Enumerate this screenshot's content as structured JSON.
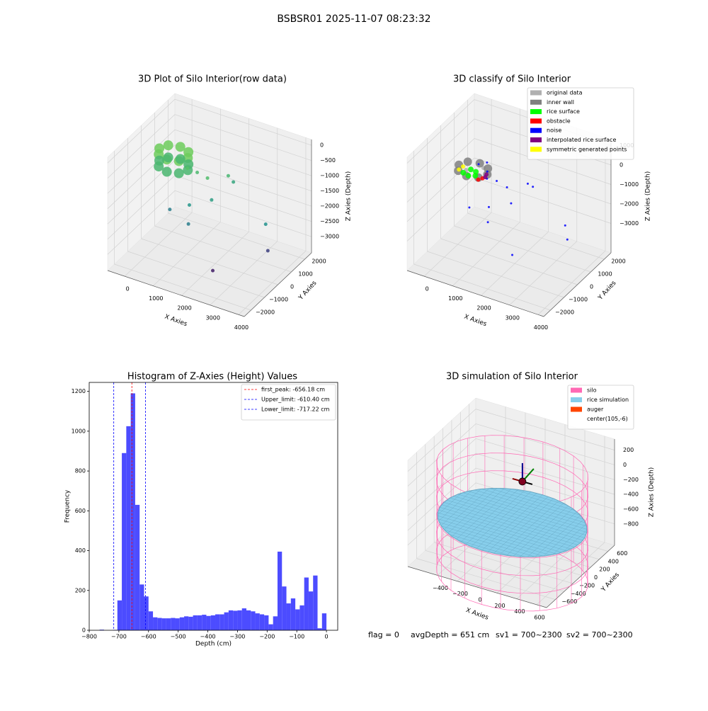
{
  "title": "BSBSR01 2025-11-07 08:23:32",
  "footer": [
    "flag = 0",
    "avgDepth = 651 cm",
    "sv1 = 700~2300",
    "sv2 = 700~2300"
  ],
  "chart_data": [
    {
      "type": "scatter3d",
      "title": "3D Plot of Silo Interior(row data)",
      "xlabel": "X Axies",
      "ylabel": "Y Axies",
      "zlabel": "Z Axies (Depth)",
      "colormap": "viridis",
      "xlim": [
        -600,
        4200
      ],
      "ylim": [
        -2500,
        2500
      ],
      "zlim": [
        -3530,
        190
      ],
      "xticks": [
        0,
        1000,
        2000,
        3000,
        4000
      ],
      "yticks": [
        {
          "value": -2000,
          "label": "−2000"
        },
        {
          "value": -1000,
          "label": "−1000"
        },
        0,
        1000,
        2000
      ],
      "zticks": [
        0,
        {
          "value": -500,
          "label": "−500"
        },
        {
          "value": -1000,
          "label": "−1000"
        },
        {
          "value": -1500,
          "label": "−1500"
        },
        {
          "value": -2000,
          "label": "−2000"
        },
        {
          "value": -2500,
          "label": "−2500"
        },
        {
          "value": -3000,
          "label": "−3000"
        }
      ],
      "series": [
        {
          "x": [
            800,
            654,
            300,
            -54,
            -200,
            -54,
            300,
            654,
            800,
            654,
            300,
            -54,
            -200,
            -54,
            300,
            654
          ],
          "y": [
            500,
            854,
            1000,
            854,
            500,
            146,
            0,
            146,
            500,
            854,
            1000,
            854,
            500,
            146,
            0,
            146
          ],
          "z": [
            -650,
            -650,
            -650,
            -650,
            -650,
            -650,
            -650,
            -650,
            -1050,
            -1050,
            -1050,
            -1050,
            -1050,
            -1050,
            -1050,
            -1050
          ]
        },
        {
          "x": [
            904,
            1130,
            1609,
            1985,
            2046,
            1872,
            1327,
            641,
            1529,
            3771,
            3611,
            2385
          ],
          "y": [
            250,
            500,
            250,
            1000,
            1250,
            0,
            -500,
            -500,
            -1000,
            0,
            500,
            -1000
          ],
          "z": [
            -850,
            -1020,
            -950,
            -1070,
            -1360,
            -1480,
            -1610,
            -1970,
            -1960,
            -1680,
            -2810,
            -3220
          ]
        }
      ]
    },
    {
      "type": "scatter3d",
      "title": "3D classify of Silo Interior",
      "xlabel": "X Axies",
      "ylabel": "Y Axies",
      "zlabel": "Z Axies (Depth)",
      "legend": "upper right",
      "xlim": [
        -600,
        4200
      ],
      "ylim": [
        -2500,
        2500
      ],
      "zlim": [
        -4510,
        1310
      ],
      "xticks": [
        0,
        1000,
        2000,
        3000,
        4000
      ],
      "yticks": [
        {
          "value": -2000,
          "label": "−2000"
        },
        {
          "value": -1000,
          "label": "−1000"
        },
        0,
        1000,
        2000
      ],
      "zticks": [
        1000,
        0,
        {
          "value": -1000,
          "label": "−1000"
        },
        {
          "value": -2000,
          "label": "−2000"
        },
        {
          "value": -3000,
          "label": "−3000"
        }
      ],
      "series": [
        {
          "name": "original data",
          "color": "#b0b0b0",
          "x": [
            100,
            550
          ],
          "y": [
            400,
            750
          ],
          "z": [
            -900,
            -800
          ]
        },
        {
          "name": "inner wall",
          "color": "#808080",
          "x": [
            800,
            654,
            300,
            -54,
            -200,
            -54,
            300,
            654
          ],
          "y": [
            500,
            854,
            1000,
            854,
            500,
            146,
            0,
            146
          ],
          "z": [
            -850,
            -850,
            -850,
            -850,
            -850,
            -850,
            -850,
            -850
          ]
        },
        {
          "name": "rice surface",
          "color": "#00ff00",
          "x": [
            50,
            250,
            450,
            150,
            350
          ],
          "y": [
            300,
            250,
            350,
            650,
            600
          ],
          "z": [
            -1000,
            -1020,
            -990,
            -1010,
            -1000
          ]
        },
        {
          "name": "obstacle",
          "color": "#ff0000",
          "x": [
            600,
            700
          ],
          "y": [
            250,
            350
          ],
          "z": [
            -1050,
            -1000
          ]
        },
        {
          "name": "noise",
          "color": "#0000ff",
          "x": [
            400,
            600,
            800,
            904,
            1130,
            1609,
            1985,
            2046,
            1872,
            1327,
            641,
            1529,
            3771,
            3611,
            2385
          ],
          "y": [
            700,
            900,
            500,
            250,
            500,
            250,
            1000,
            1250,
            0,
            -500,
            -500,
            -1000,
            0,
            500,
            -1000
          ],
          "z": [
            -650,
            -600,
            -700,
            -850,
            -1020,
            -950,
            -1070,
            -1360,
            -1480,
            -1610,
            -1970,
            -1960,
            -1680,
            -2810,
            -3220
          ]
        },
        {
          "name": "interpolated rice surface",
          "color": "#800080",
          "x": [
            700,
            750
          ],
          "y": [
            650,
            450
          ],
          "z": [
            -1000,
            -980
          ]
        },
        {
          "name": "symmetric generated points",
          "color": "#ffff00",
          "x": [
            -100,
            -150
          ],
          "y": [
            600,
            400
          ],
          "z": [
            -950,
            -1000
          ]
        }
      ]
    },
    {
      "type": "histogram",
      "title": "Histogram of Z-Axies (Height) Values",
      "xlabel": "Depth (cm)",
      "ylabel": "Frequency",
      "color": "#4c4cff",
      "legend": "upper right",
      "bins": [
        -765,
        -750,
        -735,
        -720,
        -705,
        -690,
        -675,
        -660,
        -645,
        -630,
        -615,
        -600,
        -585,
        -570,
        -555,
        -540,
        -525,
        -510,
        -495,
        -480,
        -465,
        -450,
        -435,
        -420,
        -405,
        -390,
        -375,
        -360,
        -345,
        -330,
        -315,
        -300,
        -285,
        -270,
        -255,
        -240,
        -225,
        -210,
        -195,
        -180,
        -165,
        -150,
        -135,
        -120,
        -105,
        -90,
        -75,
        -60,
        -45,
        -30,
        -15,
        0
      ],
      "values": [
        3,
        0,
        0,
        2,
        150,
        890,
        1025,
        1190,
        630,
        230,
        170,
        95,
        65,
        62,
        60,
        60,
        62,
        60,
        65,
        70,
        68,
        75,
        75,
        78,
        72,
        75,
        80,
        80,
        90,
        100,
        98,
        100,
        110,
        100,
        95,
        85,
        80,
        75,
        30,
        70,
        395,
        220,
        135,
        160,
        105,
        125,
        265,
        195,
        275,
        10,
        85
      ],
      "xlim": [
        -800,
        38
      ],
      "ylim": [
        0,
        1245
      ],
      "xticks": [
        {
          "value": -800,
          "label": "−800"
        },
        {
          "value": -700,
          "label": "−700"
        },
        {
          "value": -600,
          "label": "−600"
        },
        {
          "value": -500,
          "label": "−500"
        },
        {
          "value": -400,
          "label": "−400"
        },
        {
          "value": -300,
          "label": "−300"
        },
        {
          "value": -200,
          "label": "−200"
        },
        {
          "value": -100,
          "label": "−100"
        },
        0
      ],
      "yticks": [
        0,
        200,
        400,
        600,
        800,
        1000,
        1200
      ],
      "vlines": [
        {
          "name": "first_peak: -656.18 cm",
          "value": -656.18,
          "color": "#ff0000"
        },
        {
          "name": "Upper_limit: -610.40 cm",
          "value": -610.4,
          "color": "#0000ff"
        },
        {
          "name": "Lower_limit: -717.22 cm",
          "value": -717.22,
          "color": "#0000ff"
        }
      ]
    },
    {
      "type": "cylinder3d",
      "title": "3D simulation of Silo Interior",
      "xlabel": "X Axies",
      "ylabel": "Y Axies",
      "zlabel": "Z Axies (Depth)",
      "legend": "upper right",
      "xlim": [
        -700,
        700
      ],
      "ylim": [
        -800,
        750
      ],
      "zlim": [
        -1090,
        350
      ],
      "xticks": [
        {
          "value": -400,
          "label": "−400"
        },
        {
          "value": -200,
          "label": "−200"
        },
        0,
        200,
        400,
        600
      ],
      "yticks": [
        {
          "value": -600,
          "label": "−600"
        },
        {
          "value": -400,
          "label": "−400"
        },
        {
          "value": -200,
          "label": "−200"
        },
        0,
        200,
        400,
        600
      ],
      "zticks": [
        200,
        0,
        {
          "value": -200,
          "label": "−200"
        },
        {
          "value": -400,
          "label": "−400"
        },
        {
          "value": -600,
          "label": "−600"
        },
        {
          "value": -800,
          "label": "−800"
        }
      ],
      "series": [
        {
          "name": "silo",
          "color": "#ff69b4",
          "radius": 700,
          "z": [
            -1380,
            60
          ]
        },
        {
          "name": "rice simulation",
          "color": "#87ceeb",
          "radius": 690,
          "z": -651
        },
        {
          "name": "auger",
          "color": "#ff4500",
          "x": 105,
          "y": -6,
          "z": -50
        },
        {
          "name": "center(105,-6)",
          "color": "#ffffff"
        }
      ]
    }
  ]
}
